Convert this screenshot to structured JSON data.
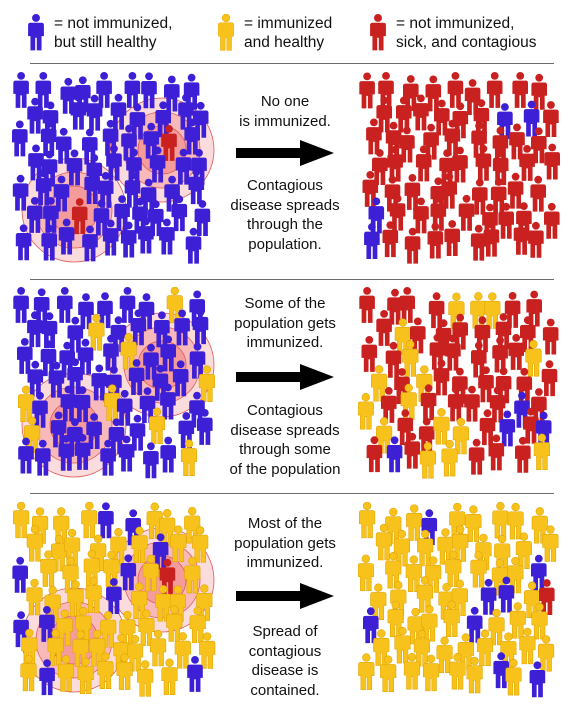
{
  "colors": {
    "not_immunized": "#3d1fd6",
    "immunized": "#f7c21c",
    "sick": "#c8211f",
    "ring": "#f28080"
  },
  "legend": {
    "not_immunized": {
      "line1": "= not immunized,",
      "line2": "but still healthy",
      "icon": "blue-person-icon"
    },
    "immunized": {
      "line1": "= immunized",
      "line2": "and healthy",
      "icon": "yellow-person-icon"
    },
    "sick": {
      "line1": "= not immunized,",
      "line2": "sick, and contagious",
      "icon": "red-person-icon"
    }
  },
  "panels": [
    {
      "text_top": [
        "No one",
        "is immunized."
      ],
      "text_bottom": [
        "Contagious",
        "disease spreads",
        "through the",
        "population."
      ],
      "arrow_icon": "right-arrow-icon"
    },
    {
      "text_top": [
        "Some of the",
        "population gets",
        "immunized."
      ],
      "text_bottom": [
        "Contagious",
        "disease spreads",
        "through some",
        "of the population"
      ],
      "arrow_icon": "right-arrow-icon"
    },
    {
      "text_top": [
        "Most of the",
        "population gets",
        "immunized."
      ],
      "text_bottom": [
        "Spread of",
        "contagious",
        "disease is",
        "contained."
      ],
      "arrow_icon": "right-arrow-icon"
    }
  ]
}
